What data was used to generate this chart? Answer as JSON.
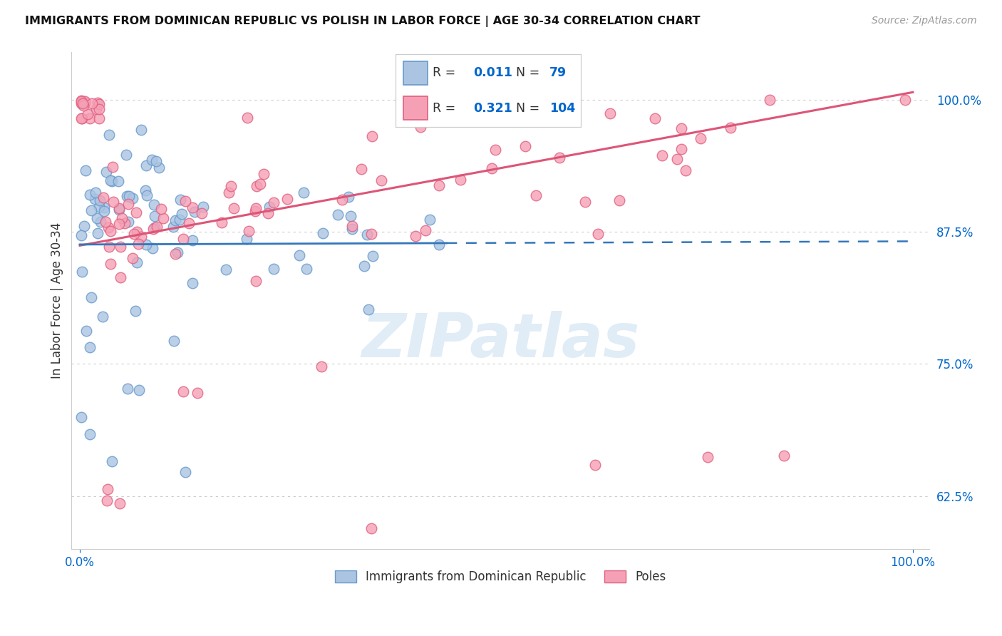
{
  "title": "IMMIGRANTS FROM DOMINICAN REPUBLIC VS POLISH IN LABOR FORCE | AGE 30-34 CORRELATION CHART",
  "source": "Source: ZipAtlas.com",
  "ylabel": "In Labor Force | Age 30-34",
  "xlim": [
    -0.01,
    1.02
  ],
  "ylim": [
    0.575,
    1.045
  ],
  "yticks": [
    0.625,
    0.75,
    0.875,
    1.0
  ],
  "ytick_labels": [
    "62.5%",
    "75.0%",
    "87.5%",
    "100.0%"
  ],
  "xtick_labels": [
    "0.0%",
    "100.0%"
  ],
  "r_dominican": 0.011,
  "n_dominican": 79,
  "r_polish": 0.321,
  "n_polish": 104,
  "dominican_color": "#aac4e2",
  "polish_color": "#f5a0b5",
  "dominican_edge": "#6699cc",
  "polish_edge": "#e06080",
  "line_blue": "#3377bb",
  "line_pink": "#dd5577",
  "legend_color": "#0066cc",
  "background_color": "#ffffff",
  "grid_color": "#cccccc",
  "watermark_color": "#cce0f0"
}
